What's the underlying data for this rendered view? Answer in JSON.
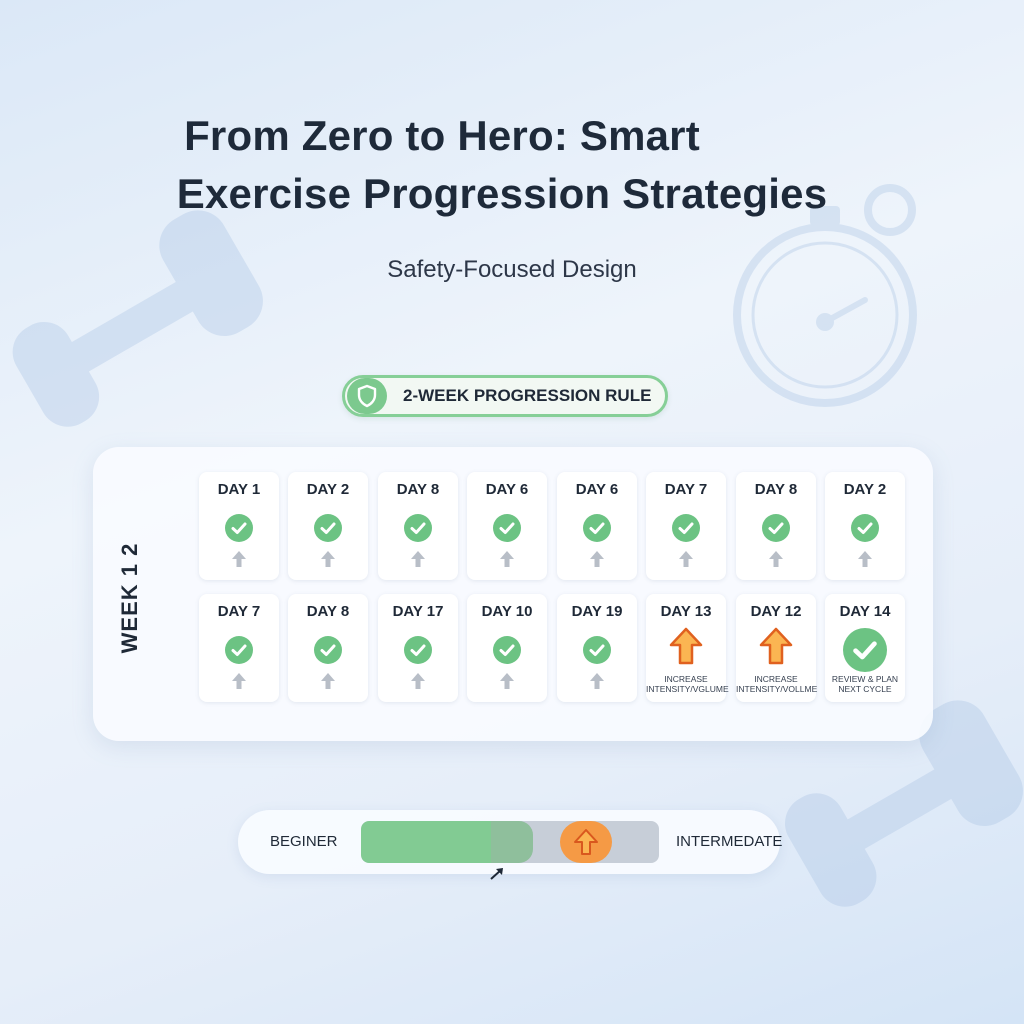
{
  "title_line1": "From Zero to Hero: Smart",
  "title_line2": "Exercise Progression Strategies",
  "subtitle": "Safety-Focused Design",
  "rule_badge": {
    "label": "2-WEEK PROGRESSION RULE",
    "icon": "shield-icon"
  },
  "week_label": "WEEK 1 2",
  "week1": [
    {
      "day": "DAY 1"
    },
    {
      "day": "DAY 2"
    },
    {
      "day": "DAY 8"
    },
    {
      "day": "DAY 6"
    },
    {
      "day": "DAY 6"
    },
    {
      "day": "DAY 7"
    },
    {
      "day": "DAY 8"
    },
    {
      "day": "DAY 2"
    }
  ],
  "week2": [
    {
      "day": "DAY 7"
    },
    {
      "day": "DAY 8"
    },
    {
      "day": "DAY 17"
    },
    {
      "day": "DAY 10"
    },
    {
      "day": "DAY 19"
    },
    {
      "day": "DAY 13",
      "note": "INCREASE INTENSITY/VGLUME"
    },
    {
      "day": "DAY 12",
      "note": "INCREASE INTENSITY/VOLLME"
    },
    {
      "day": "DAY 14",
      "note": "REVIEW & PLAN NEXT CYCLE"
    }
  ],
  "progress": {
    "start_label": "BEGINER",
    "end_label": "INTERMEDATE",
    "fill_fraction": 0.46
  },
  "colors": {
    "green": "#7cc98e",
    "orange": "#f59a45",
    "gray": "#b8bec7"
  }
}
